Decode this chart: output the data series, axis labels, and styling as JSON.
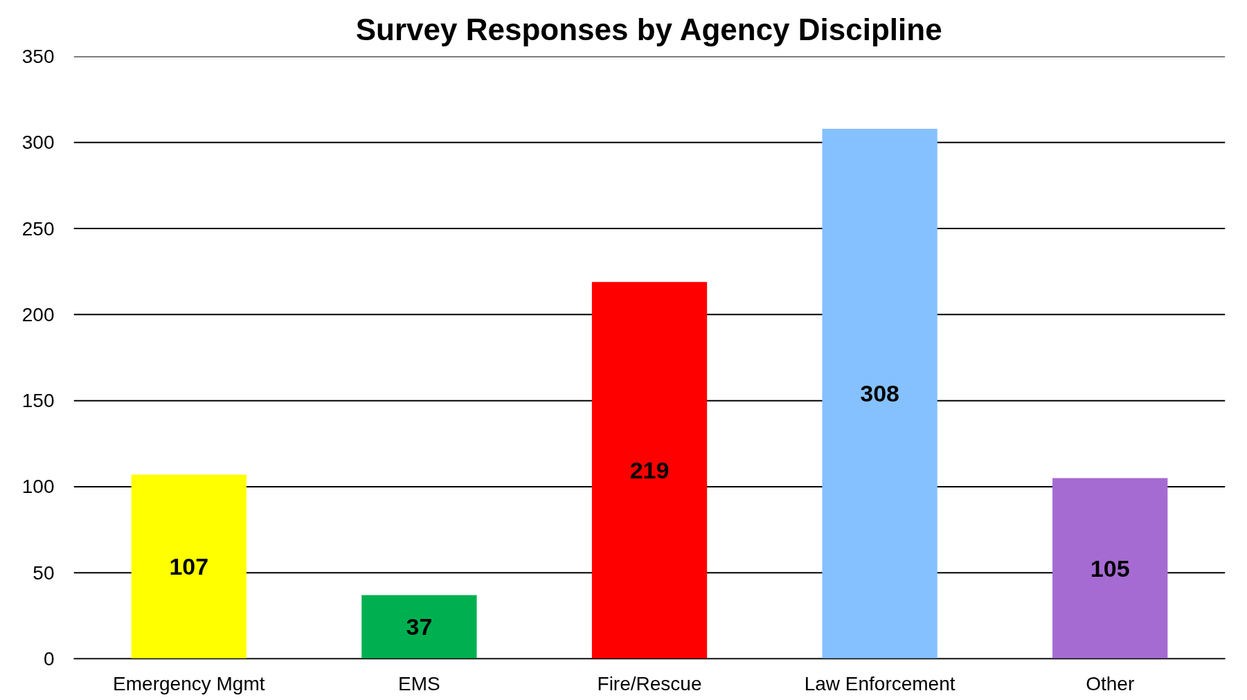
{
  "chart_data": {
    "type": "bar",
    "title": "Survey Responses by Agency Discipline",
    "categories": [
      "Emergency Mgmt",
      "EMS",
      "Fire/Rescue",
      "Law Enforcement",
      "Other"
    ],
    "values": [
      107,
      37,
      219,
      308,
      105
    ],
    "colors": [
      "#ffff00",
      "#00b050",
      "#ff0000",
      "#85c1ff",
      "#a66bd3"
    ],
    "ylim": [
      0,
      350
    ],
    "yticks": [
      0,
      50,
      100,
      150,
      200,
      250,
      300,
      350
    ],
    "grid": "y",
    "data_labels": true
  }
}
